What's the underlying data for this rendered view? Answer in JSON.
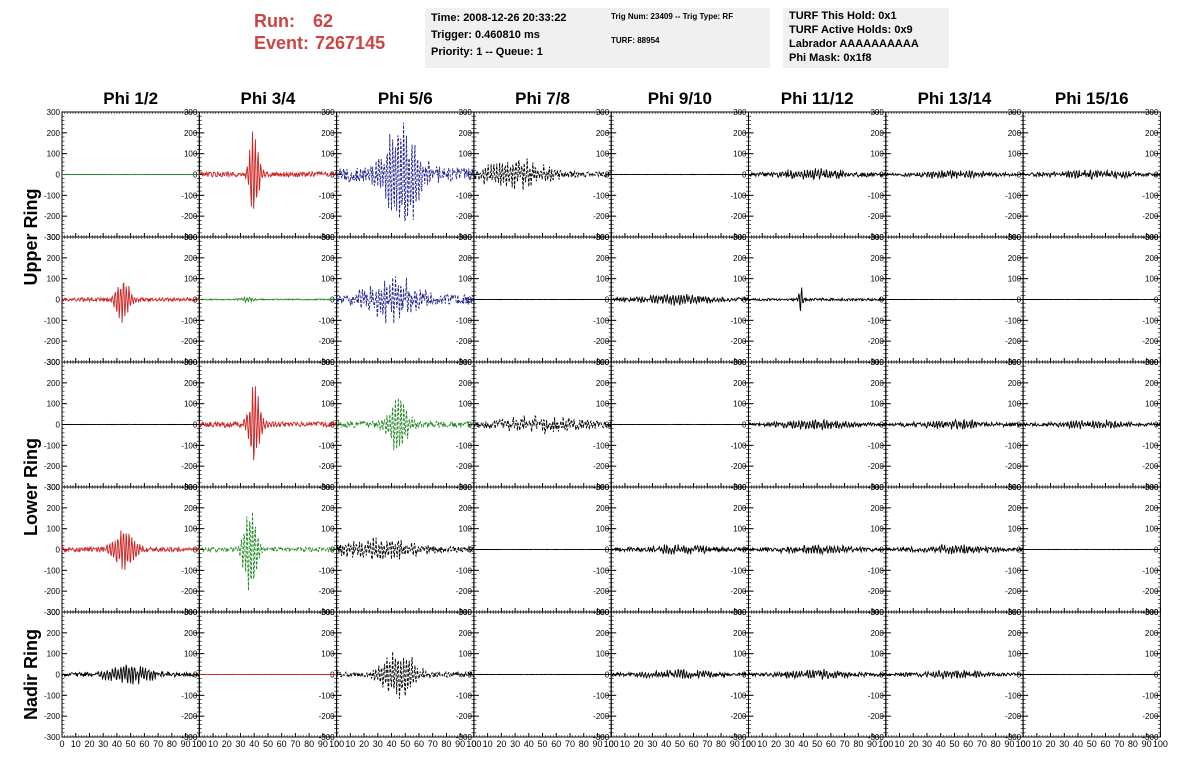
{
  "header": {
    "run_label": "Run:",
    "run_value": "62",
    "event_label": "Event:",
    "event_value": "7267145"
  },
  "info1": {
    "time": "Time: 2008-12-26 20:33:22",
    "trigger": "Trigger: 0.460810 ms",
    "priority": "Priority: 1 -- Queue: 1"
  },
  "info2": {
    "trig": "Trig Num: 23409 -- Trig Type: RF",
    "turf": "TURF: 88954"
  },
  "info3": {
    "hold": "TURF This Hold: 0x1",
    "active": "TURF Active Holds: 0x9",
    "labrador": "Labrador AAAAAAAAAA",
    "mask": "Phi Mask: 0x1f8"
  },
  "chart_data": {
    "type": "line",
    "columns": [
      "Phi 1/2",
      "Phi 3/4",
      "Phi 5/6",
      "Phi 7/8",
      "Phi 9/10",
      "Phi 11/12",
      "Phi 13/14",
      "Phi 15/16"
    ],
    "ring_labels": [
      "Upper Ring",
      "Lower Ring",
      "Nadir Ring"
    ],
    "xlim": [
      0,
      100
    ],
    "ylim": [
      -300,
      300
    ],
    "x_ticks": [
      0,
      10,
      20,
      30,
      40,
      50,
      60,
      70,
      80,
      90,
      100
    ],
    "y_ticks": [
      -300,
      -200,
      -100,
      0,
      100,
      200,
      300
    ],
    "colors": {
      "red": "#cc2222",
      "green": "#228822",
      "blue": "#22228e",
      "black": "#000000"
    },
    "panels": [
      [
        {
          "color": "green",
          "amp": 1,
          "peak": 0,
          "center": 50,
          "width": 20,
          "style": "solid",
          "extent": 100
        },
        {
          "color": "red",
          "amp": 25,
          "peak": 230,
          "center": 40,
          "width": 4,
          "style": "solid",
          "extent": 100
        },
        {
          "color": "blue",
          "amp": 70,
          "peak": 260,
          "center": 48,
          "width": 14,
          "style": "dashed",
          "extent": 100
        },
        {
          "color": "black",
          "amp": 30,
          "peak": 60,
          "center": 30,
          "width": 25,
          "style": "dashed",
          "extent": 100
        },
        {
          "color": "black",
          "amp": 1,
          "peak": 0,
          "center": 50,
          "width": 20,
          "style": "solid",
          "extent": 100
        },
        {
          "color": "black",
          "amp": 15,
          "peak": 20,
          "center": 50,
          "width": 30,
          "style": "solid",
          "extent": 100
        },
        {
          "color": "black",
          "amp": 12,
          "peak": 15,
          "center": 50,
          "width": 30,
          "style": "solid",
          "extent": 100
        },
        {
          "color": "black",
          "amp": 14,
          "peak": 15,
          "center": 50,
          "width": 30,
          "style": "solid",
          "extent": 100
        }
      ],
      [
        {
          "color": "red",
          "amp": 18,
          "peak": 110,
          "center": 44,
          "width": 6,
          "style": "solid",
          "extent": 100
        },
        {
          "color": "green",
          "amp": 5,
          "peak": 10,
          "center": 35,
          "width": 6,
          "style": "solid",
          "extent": 100
        },
        {
          "color": "blue",
          "amp": 50,
          "peak": 90,
          "center": 40,
          "width": 20,
          "style": "dashed",
          "extent": 100
        },
        {
          "color": "black",
          "amp": 1,
          "peak": 0,
          "center": 50,
          "width": 20,
          "style": "solid",
          "extent": 100
        },
        {
          "color": "black",
          "amp": 14,
          "peak": 20,
          "center": 50,
          "width": 30,
          "style": "solid",
          "extent": 100
        },
        {
          "color": "black",
          "amp": 12,
          "peak": 60,
          "center": 38,
          "width": 2,
          "style": "solid",
          "extent": 100
        },
        {
          "color": "black",
          "amp": 1,
          "peak": 0,
          "center": 50,
          "width": 20,
          "style": "solid",
          "extent": 100
        },
        {
          "color": "black",
          "amp": 1,
          "peak": 0,
          "center": 50,
          "width": 20,
          "style": "solid",
          "extent": 100
        }
      ],
      [
        {
          "color": "black",
          "amp": 1,
          "peak": 0,
          "center": 50,
          "width": 20,
          "style": "solid",
          "extent": 100
        },
        {
          "color": "red",
          "amp": 25,
          "peak": 200,
          "center": 40,
          "width": 5,
          "style": "solid",
          "extent": 100
        },
        {
          "color": "green",
          "amp": 30,
          "peak": 150,
          "center": 45,
          "width": 8,
          "style": "dashed",
          "extent": 100
        },
        {
          "color": "black",
          "amp": 28,
          "peak": 30,
          "center": 50,
          "width": 30,
          "style": "dashed",
          "extent": 100
        },
        {
          "color": "black",
          "amp": 1,
          "peak": 0,
          "center": 50,
          "width": 20,
          "style": "solid",
          "extent": 100
        },
        {
          "color": "black",
          "amp": 14,
          "peak": 20,
          "center": 50,
          "width": 30,
          "style": "solid",
          "extent": 100
        },
        {
          "color": "black",
          "amp": 14,
          "peak": 15,
          "center": 50,
          "width": 30,
          "style": "solid",
          "extent": 100
        },
        {
          "color": "black",
          "amp": 12,
          "peak": 15,
          "center": 50,
          "width": 30,
          "style": "solid",
          "extent": 100
        }
      ],
      [
        {
          "color": "red",
          "amp": 20,
          "peak": 90,
          "center": 45,
          "width": 10,
          "style": "solid",
          "extent": 100
        },
        {
          "color": "green",
          "amp": 20,
          "peak": 250,
          "center": 37,
          "width": 5,
          "style": "dashed",
          "extent": 100
        },
        {
          "color": "black",
          "amp": 30,
          "peak": 40,
          "center": 30,
          "width": 30,
          "style": "dashed",
          "extent": 100
        },
        {
          "color": "black",
          "amp": 1,
          "peak": 0,
          "center": 50,
          "width": 20,
          "style": "solid",
          "extent": 100
        },
        {
          "color": "black",
          "amp": 14,
          "peak": 15,
          "center": 50,
          "width": 30,
          "style": "solid",
          "extent": 100
        },
        {
          "color": "black",
          "amp": 14,
          "peak": 15,
          "center": 50,
          "width": 30,
          "style": "solid",
          "extent": 100
        },
        {
          "color": "black",
          "amp": 14,
          "peak": 15,
          "center": 50,
          "width": 30,
          "style": "solid",
          "extent": 100
        },
        {
          "color": "black",
          "amp": 1,
          "peak": 0,
          "center": 50,
          "width": 20,
          "style": "solid",
          "extent": 100
        }
      ],
      [
        {
          "color": "black",
          "amp": 18,
          "peak": 40,
          "center": 50,
          "width": 20,
          "style": "solid",
          "extent": 100
        },
        {
          "color": "red",
          "amp": 1,
          "peak": 0,
          "center": 50,
          "width": 20,
          "style": "solid",
          "extent": 100
        },
        {
          "color": "black",
          "amp": 25,
          "peak": 120,
          "center": 46,
          "width": 14,
          "style": "dashed",
          "extent": 100
        },
        {
          "color": "black",
          "amp": 1,
          "peak": 0,
          "center": 50,
          "width": 20,
          "style": "solid",
          "extent": 100
        },
        {
          "color": "black",
          "amp": 14,
          "peak": 15,
          "center": 50,
          "width": 30,
          "style": "solid",
          "extent": 100
        },
        {
          "color": "black",
          "amp": 14,
          "peak": 15,
          "center": 50,
          "width": 30,
          "style": "solid",
          "extent": 100
        },
        {
          "color": "black",
          "amp": 12,
          "peak": 15,
          "center": 50,
          "width": 30,
          "style": "solid",
          "extent": 100
        },
        {
          "color": "black",
          "amp": 1,
          "peak": 0,
          "center": 50,
          "width": 20,
          "style": "solid",
          "extent": 100
        }
      ]
    ]
  }
}
